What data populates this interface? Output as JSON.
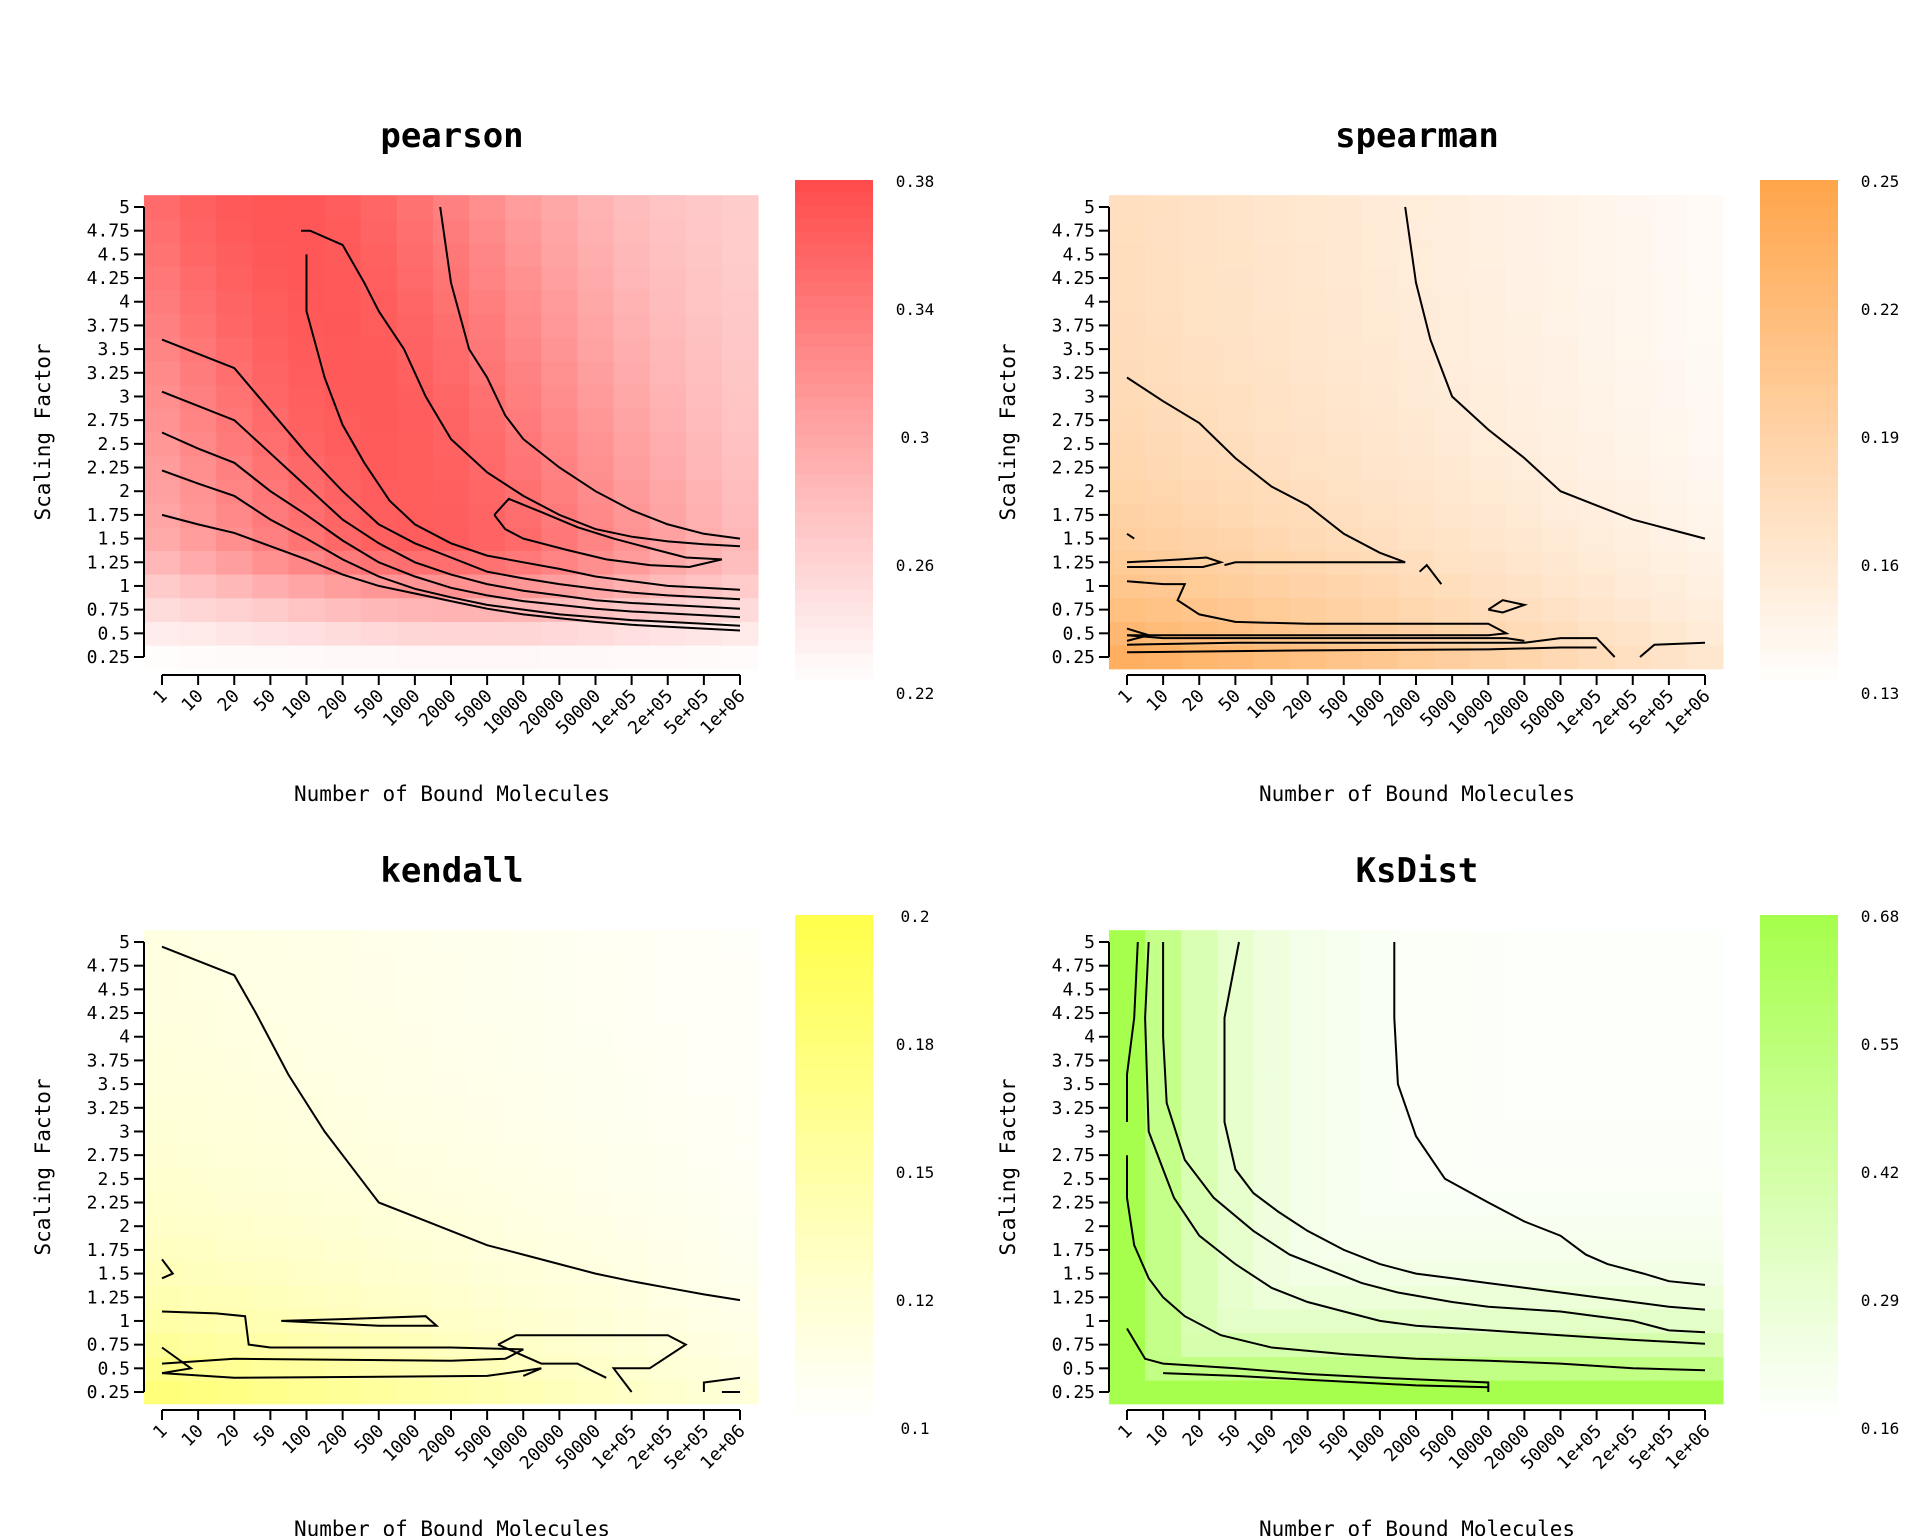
{
  "chart_data": [
    {
      "type": "heatmap",
      "title": "pearson",
      "xlabel": "Number of Bound Molecules",
      "ylabel": "Scaling Factor",
      "x_categories": [
        "1",
        "10",
        "20",
        "50",
        "100",
        "200",
        "500",
        "1000",
        "2000",
        "5000",
        "10000",
        "20000",
        "50000",
        "1e+05",
        "2e+05",
        "5e+05",
        "1e+06"
      ],
      "y_categories": [
        "0.25",
        "0.5",
        "0.75",
        "1",
        "1.25",
        "1.5",
        "1.75",
        "2",
        "2.25",
        "2.5",
        "2.75",
        "3",
        "3.25",
        "3.5",
        "3.75",
        "4",
        "4.25",
        "4.5",
        "4.75",
        "5"
      ],
      "color_low": "#ffffff",
      "color_high": "#ff4d4d",
      "legend_ticks": [
        "0.22",
        "0.26",
        "0.3",
        "0.34",
        "0.38"
      ],
      "value_range": [
        0.22,
        0.38
      ],
      "peak_x_index": 7.5,
      "legend_position": "right",
      "grid": false
    },
    {
      "type": "heatmap",
      "title": "spearman",
      "xlabel": "Number of Bound Molecules",
      "ylabel": "Scaling Factor",
      "x_categories": [
        "1",
        "10",
        "20",
        "50",
        "100",
        "200",
        "500",
        "1000",
        "2000",
        "5000",
        "10000",
        "20000",
        "50000",
        "1e+05",
        "2e+05",
        "5e+05",
        "1e+06"
      ],
      "y_categories": [
        "0.25",
        "0.5",
        "0.75",
        "1",
        "1.25",
        "1.5",
        "1.75",
        "2",
        "2.25",
        "2.5",
        "2.75",
        "3",
        "3.25",
        "3.5",
        "3.75",
        "4",
        "4.25",
        "4.5",
        "4.75",
        "5"
      ],
      "color_low": "#ffffff",
      "color_high": "#ffa64d",
      "legend_ticks": [
        "0.13",
        "0.16",
        "0.19",
        "0.22",
        "0.25"
      ],
      "value_range": [
        0.13,
        0.25
      ],
      "legend_position": "right",
      "grid": false
    },
    {
      "type": "heatmap",
      "title": "kendall",
      "xlabel": "Number of Bound Molecules",
      "ylabel": "Scaling Factor",
      "x_categories": [
        "1",
        "10",
        "20",
        "50",
        "100",
        "200",
        "500",
        "1000",
        "2000",
        "5000",
        "10000",
        "20000",
        "50000",
        "1e+05",
        "2e+05",
        "5e+05",
        "1e+06"
      ],
      "y_categories": [
        "0.25",
        "0.5",
        "0.75",
        "1",
        "1.25",
        "1.5",
        "1.75",
        "2",
        "2.25",
        "2.5",
        "2.75",
        "3",
        "3.25",
        "3.5",
        "3.75",
        "4",
        "4.25",
        "4.5",
        "4.75",
        "5"
      ],
      "color_low": "#ffffff",
      "color_high": "#ffff4d",
      "legend_ticks": [
        "0.1",
        "0.12",
        "0.15",
        "0.18",
        "0.2"
      ],
      "value_range": [
        0.1,
        0.2
      ],
      "legend_position": "right",
      "grid": false
    },
    {
      "type": "heatmap",
      "title": "KsDist",
      "xlabel": "Number of Bound Molecules",
      "ylabel": "Scaling Factor",
      "x_categories": [
        "1",
        "10",
        "20",
        "50",
        "100",
        "200",
        "500",
        "1000",
        "2000",
        "5000",
        "10000",
        "20000",
        "50000",
        "1e+05",
        "2e+05",
        "5e+05",
        "1e+06"
      ],
      "y_categories": [
        "0.25",
        "0.5",
        "0.75",
        "1",
        "1.25",
        "1.5",
        "1.75",
        "2",
        "2.25",
        "2.5",
        "2.75",
        "3",
        "3.25",
        "3.5",
        "3.75",
        "4",
        "4.25",
        "4.5",
        "4.75",
        "5"
      ],
      "color_low": "#ffffff",
      "color_high": "#a6ff4d",
      "legend_ticks": [
        "0.16",
        "0.29",
        "0.42",
        "0.55",
        "0.68"
      ],
      "value_range": [
        0.16,
        0.68
      ],
      "legend_position": "right",
      "grid": false
    }
  ]
}
